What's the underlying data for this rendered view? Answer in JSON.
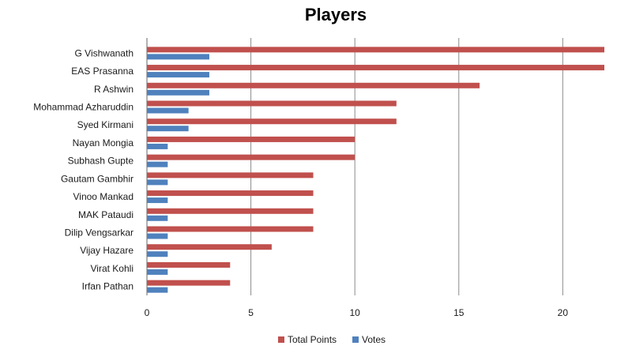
{
  "chart_data": {
    "type": "bar",
    "orientation": "horizontal",
    "title": "Players",
    "xlabel": "",
    "ylabel": "",
    "xlim": [
      0,
      22
    ],
    "xticks": [
      0,
      5,
      10,
      15,
      20
    ],
    "grid": "vertical",
    "legend_position": "bottom",
    "categories": [
      "G Vishwanath",
      "EAS Prasanna",
      "R Ashwin",
      "Mohammad  Azharuddin",
      "Syed Kirmani",
      "Nayan Mongia",
      "Subhash Gupte",
      "Gautam Gambhir",
      "Vinoo Mankad",
      "MAK Pataudi",
      "Dilip Vengsarkar",
      "Vijay Hazare",
      "Virat Kohli",
      "Irfan Pathan"
    ],
    "series": [
      {
        "name": "Total Points",
        "color": "#c0504d",
        "values": [
          22,
          22,
          16,
          12,
          12,
          10,
          10,
          8,
          8,
          8,
          8,
          6,
          4,
          4
        ]
      },
      {
        "name": "Votes",
        "color": "#4f81bd",
        "values": [
          3,
          3,
          3,
          2,
          2,
          1,
          1,
          1,
          1,
          1,
          1,
          1,
          1,
          1
        ]
      }
    ]
  }
}
